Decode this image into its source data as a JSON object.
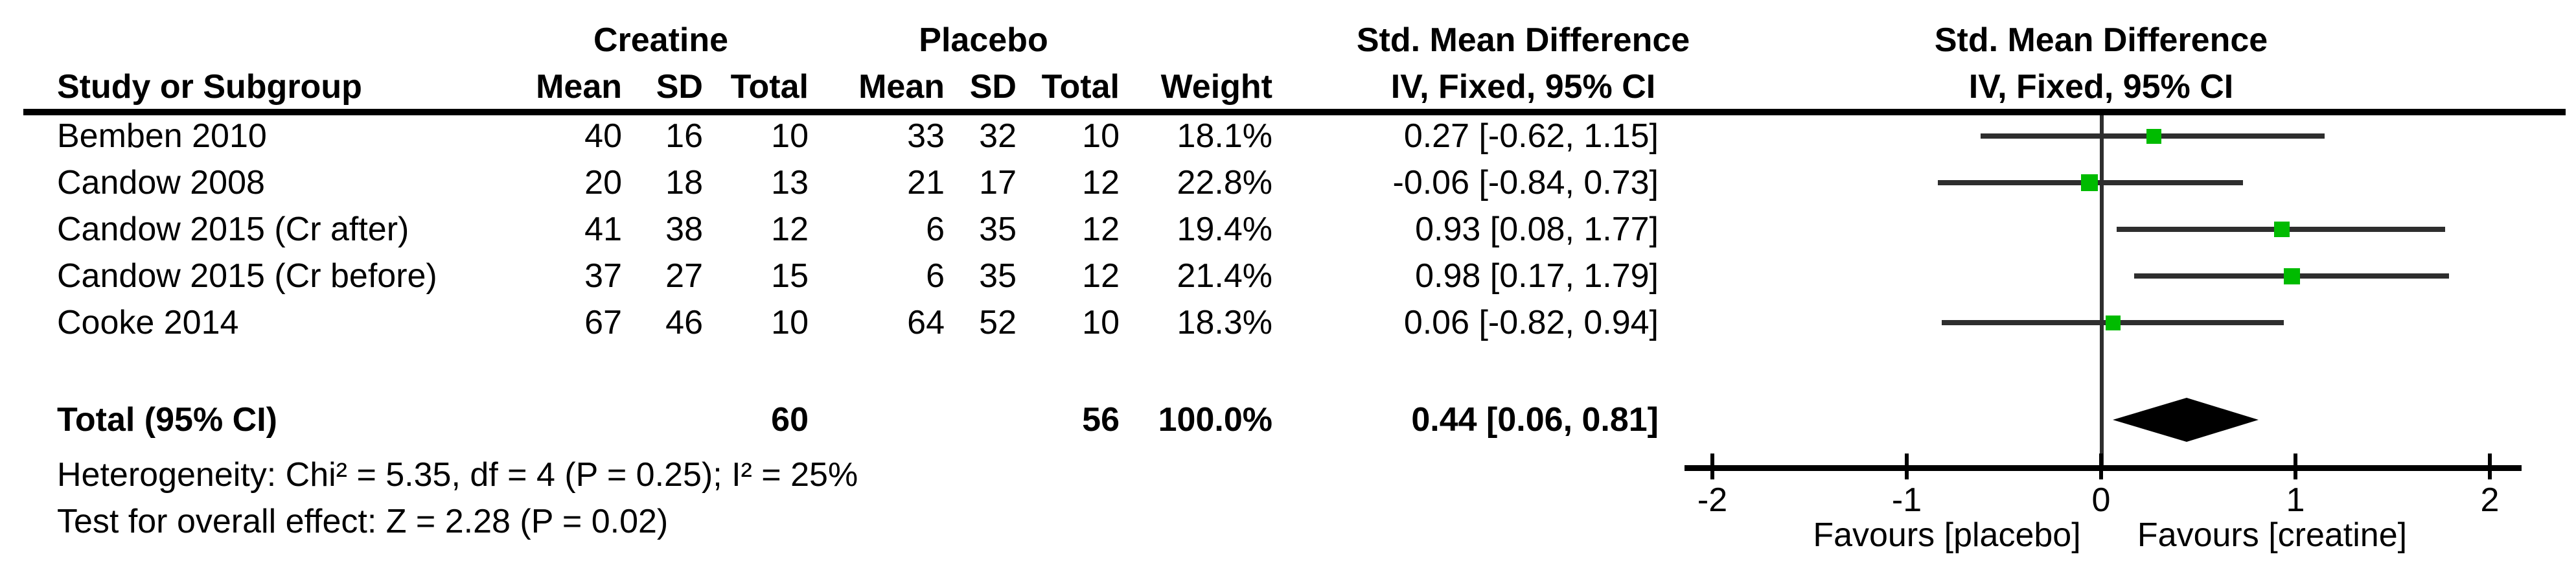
{
  "colors": {
    "square": "#00bb00",
    "diamond": "#000000",
    "ci_line": "#2e2e2e",
    "axis": "#000000",
    "text": "#000000"
  },
  "headers": {
    "group_creatine": "Creatine",
    "group_placebo": "Placebo",
    "smd_left": "Std. Mean Difference",
    "smd_right": "Std. Mean Difference",
    "study": "Study or Subgroup",
    "c_mean": "Mean",
    "c_sd": "SD",
    "c_total": "Total",
    "p_mean": "Mean",
    "p_sd": "SD",
    "p_total": "Total",
    "weight": "Weight",
    "iv_left": "IV, Fixed, 95% CI",
    "iv_right": "IV, Fixed, 95% CI"
  },
  "footer": {
    "heterogeneity": "Heterogeneity: Chi² = 5.35, df = 4 (P = 0.25); I² = 25%",
    "overall": "Test for overall effect: Z = 2.28 (P = 0.02)"
  },
  "chart_data": {
    "type": "forest",
    "effect_measure": "Std. Mean Difference, IV, Fixed, 95% CI",
    "studies": [
      {
        "study": "Bemben 2010",
        "c_mean": "40",
        "c_sd": "16",
        "c_total": "10",
        "p_mean": "33",
        "p_sd": "32",
        "p_total": "10",
        "weight": "18.1%",
        "weight_pct": 18.1,
        "est": 0.27,
        "lo": -0.62,
        "hi": 1.15,
        "effect_label": "0.27 [-0.62, 1.15]"
      },
      {
        "study": "Candow 2008",
        "c_mean": "20",
        "c_sd": "18",
        "c_total": "13",
        "p_mean": "21",
        "p_sd": "17",
        "p_total": "12",
        "weight": "22.8%",
        "weight_pct": 22.8,
        "est": -0.06,
        "lo": -0.84,
        "hi": 0.73,
        "effect_label": "-0.06 [-0.84, 0.73]"
      },
      {
        "study": "Candow 2015 (Cr after)",
        "c_mean": "41",
        "c_sd": "38",
        "c_total": "12",
        "p_mean": "6",
        "p_sd": "35",
        "p_total": "12",
        "weight": "19.4%",
        "weight_pct": 19.4,
        "est": 0.93,
        "lo": 0.08,
        "hi": 1.77,
        "effect_label": "0.93 [0.08, 1.77]"
      },
      {
        "study": "Candow 2015 (Cr before)",
        "c_mean": "37",
        "c_sd": "27",
        "c_total": "15",
        "p_mean": "6",
        "p_sd": "35",
        "p_total": "12",
        "weight": "21.4%",
        "weight_pct": 21.4,
        "est": 0.98,
        "lo": 0.17,
        "hi": 1.79,
        "effect_label": "0.98 [0.17, 1.79]"
      },
      {
        "study": "Cooke 2014",
        "c_mean": "67",
        "c_sd": "46",
        "c_total": "10",
        "p_mean": "64",
        "p_sd": "52",
        "p_total": "10",
        "weight": "18.3%",
        "weight_pct": 18.3,
        "est": 0.06,
        "lo": -0.82,
        "hi": 0.94,
        "effect_label": "0.06 [-0.82, 0.94]"
      }
    ],
    "total": {
      "label": "Total (95% CI)",
      "c_total": "60",
      "p_total": "56",
      "weight": "100.0%",
      "est": 0.44,
      "lo": 0.06,
      "hi": 0.81,
      "effect_label": "0.44 [0.06, 0.81]"
    },
    "x_axis": {
      "ticks": [
        -2,
        -1,
        0,
        1,
        2
      ],
      "tick_labels": [
        "-2",
        "-1",
        "0",
        "1",
        "2"
      ],
      "favours_left": "Favours [placebo]",
      "favours_right": "Favours [creatine]"
    }
  }
}
